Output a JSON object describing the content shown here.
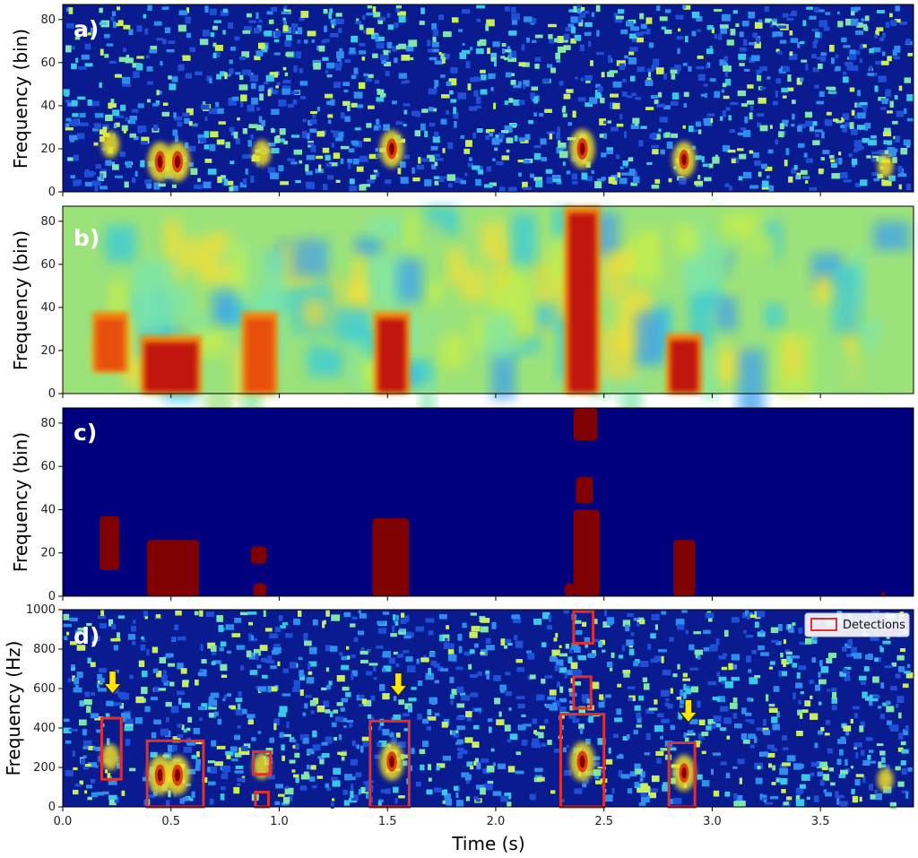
{
  "colors": {
    "background_low": "#0a1a8f",
    "detection_box": "#e03030",
    "arrow": "#ffe600",
    "mask_low": "#00007f",
    "mask_high": "#7f0000"
  },
  "chart_data": [
    {
      "panel": "a)",
      "type": "heatmap",
      "ylabel": "Frequency (bin)",
      "ylim": [
        0,
        87
      ],
      "yticks": [
        "0",
        "20",
        "40",
        "60",
        "80"
      ],
      "xlim": [
        0,
        3.93
      ],
      "colormap": "jet",
      "hotspots": [
        {
          "t": 0.22,
          "f": 22,
          "strength": 0.6
        },
        {
          "t": 0.45,
          "f": 14,
          "strength": 1.0
        },
        {
          "t": 0.53,
          "f": 14,
          "strength": 1.0
        },
        {
          "t": 0.92,
          "f": 18,
          "strength": 0.6
        },
        {
          "t": 1.52,
          "f": 20,
          "strength": 0.95
        },
        {
          "t": 2.4,
          "f": 20,
          "strength": 1.0
        },
        {
          "t": 2.87,
          "f": 15,
          "strength": 0.9
        },
        {
          "t": 3.8,
          "f": 12,
          "strength": 0.5
        }
      ]
    },
    {
      "panel": "b)",
      "type": "heatmap",
      "ylabel": "Frequency (bin)",
      "ylim": [
        0,
        87
      ],
      "yticks": [
        "0",
        "20",
        "40",
        "60",
        "80"
      ],
      "xlim": [
        0,
        3.93
      ],
      "colormap": "jet",
      "hotspots": [
        {
          "t": 0.22,
          "f": [
            10,
            38
          ],
          "strength": 0.85
        },
        {
          "t": 0.5,
          "f": [
            0,
            27
          ],
          "strength": 1.0
        },
        {
          "t": 0.91,
          "f": [
            0,
            38
          ],
          "strength": 0.75
        },
        {
          "t": 1.52,
          "f": [
            0,
            38
          ],
          "strength": 1.0
        },
        {
          "t": 2.4,
          "f": [
            0,
            87
          ],
          "strength": 1.0
        },
        {
          "t": 2.87,
          "f": [
            0,
            28
          ],
          "strength": 0.95
        }
      ]
    },
    {
      "panel": "c)",
      "type": "heatmap",
      "ylabel": "Frequency (bin)",
      "ylim": [
        0,
        87
      ],
      "yticks": [
        "0",
        "20",
        "40",
        "60",
        "80"
      ],
      "xlim": [
        0,
        3.93
      ],
      "mask_regions": [
        {
          "t": [
            0.17,
            0.26
          ],
          "f": [
            12,
            37
          ]
        },
        {
          "t": [
            0.39,
            0.63
          ],
          "f": [
            0,
            26
          ]
        },
        {
          "t": [
            0.87,
            0.94
          ],
          "f": [
            15,
            23
          ]
        },
        {
          "t": [
            0.88,
            0.94
          ],
          "f": [
            0,
            6
          ]
        },
        {
          "t": [
            1.43,
            1.6
          ],
          "f": [
            0,
            36
          ]
        },
        {
          "t": [
            2.32,
            2.36
          ],
          "f": [
            0,
            6
          ]
        },
        {
          "t": [
            2.36,
            2.48
          ],
          "f": [
            0,
            40
          ]
        },
        {
          "t": [
            2.37,
            2.45
          ],
          "f": [
            43,
            55
          ]
        },
        {
          "t": [
            2.36,
            2.47
          ],
          "f": [
            72,
            87
          ]
        },
        {
          "t": [
            2.82,
            2.92
          ],
          "f": [
            0,
            26
          ]
        },
        {
          "t": [
            3.78,
            3.8
          ],
          "f": [
            0,
            2
          ]
        }
      ]
    },
    {
      "panel": "d)",
      "type": "heatmap",
      "ylabel": "Frequency (Hz)",
      "xlabel": "Time (s)",
      "ylim": [
        0,
        1000
      ],
      "yticks": [
        "0",
        "200",
        "400",
        "600",
        "800",
        "1000"
      ],
      "xlim": [
        0,
        3.93
      ],
      "xticks": [
        "0.0",
        "0.5",
        "1.0",
        "1.5",
        "2.0",
        "2.5",
        "3.0",
        "3.5"
      ],
      "legend": {
        "entries": [
          "Detections"
        ],
        "placement": "top-right"
      },
      "detections": [
        {
          "t": [
            0.18,
            0.27
          ],
          "f": [
            140,
            450
          ]
        },
        {
          "t": [
            0.39,
            0.65
          ],
          "f": [
            0,
            335
          ]
        },
        {
          "t": [
            0.88,
            0.96
          ],
          "f": [
            165,
            280
          ]
        },
        {
          "t": [
            0.89,
            0.95
          ],
          "f": [
            0,
            75
          ]
        },
        {
          "t": [
            1.42,
            1.6
          ],
          "f": [
            0,
            435
          ]
        },
        {
          "t": [
            2.3,
            2.5
          ],
          "f": [
            0,
            470
          ]
        },
        {
          "t": [
            2.36,
            2.44
          ],
          "f": [
            500,
            660
          ]
        },
        {
          "t": [
            2.36,
            2.45
          ],
          "f": [
            830,
            990
          ]
        },
        {
          "t": [
            2.8,
            2.92
          ],
          "f": [
            0,
            325
          ]
        }
      ],
      "arrows": [
        {
          "t": 0.23,
          "f": 590
        },
        {
          "t": 1.55,
          "f": 580
        },
        {
          "t": 2.89,
          "f": 445
        }
      ]
    }
  ]
}
